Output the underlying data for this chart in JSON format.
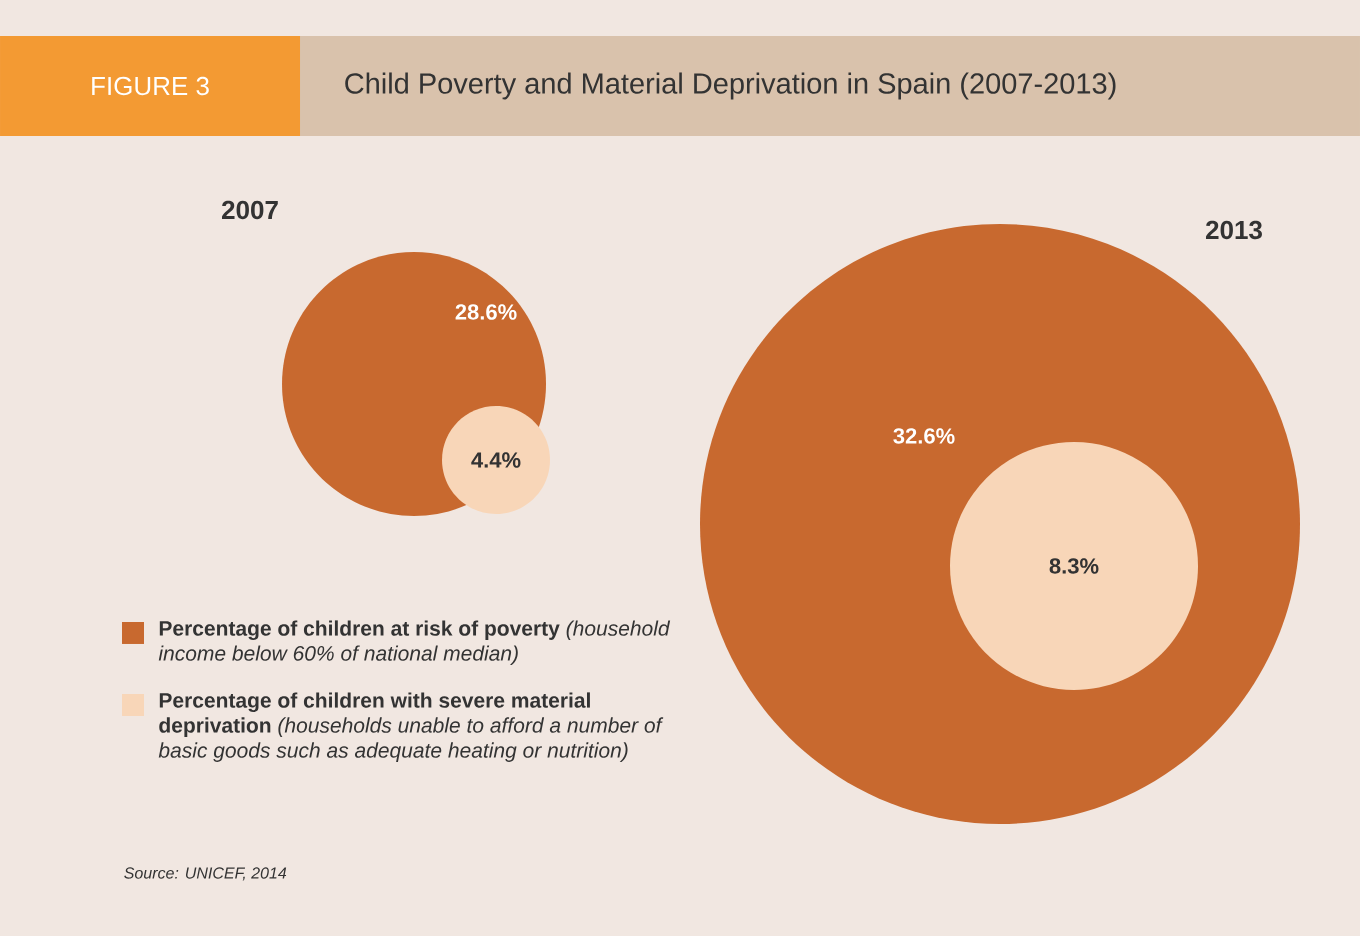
{
  "chart_data": {
    "type": "other",
    "title": "Child Poverty and Material Deprivation in Spain (2007-2013)",
    "categories": [
      "2007",
      "2013"
    ],
    "series": [
      {
        "name": "**Percentage of children at risk of poverty** *(household income below 60% of national median)*",
        "color": "#c8692f",
        "values": [
          28.6,
          32.6
        ],
        "value_labels": [
          "28.6%",
          "32.6%"
        ]
      },
      {
        "name": "**Percentage of children with severe material deprivation** *(households unable to afford a number of basic goods such as adequate heating or nutrition)*",
        "color": "#f8d6b8",
        "values": [
          4.4,
          8.3
        ],
        "value_labels": [
          "4.4%",
          "8.3%"
        ]
      }
    ],
    "legend": "bottom left",
    "annotations": [
      "FIGURE 3",
      "Source: UNICEF, 2014"
    ]
  }
}
